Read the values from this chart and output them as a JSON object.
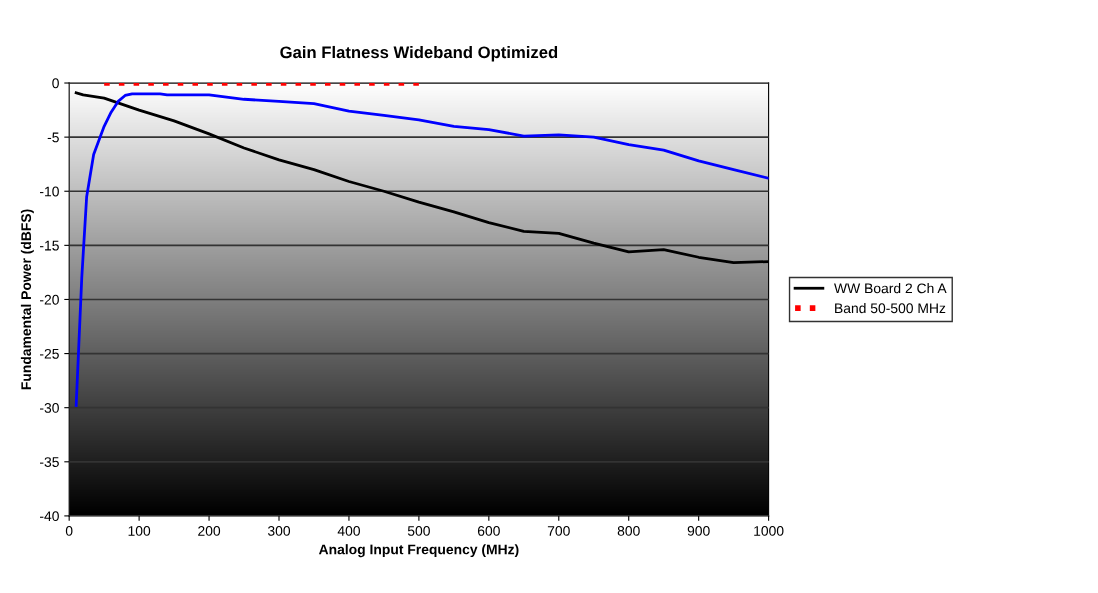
{
  "chart_data": {
    "type": "line",
    "title": "Gain Flatness Wideband Optimized",
    "xlabel": "Analog Input Frequency (MHz)",
    "ylabel": "Fundamental Power (dBFS)",
    "xlim": [
      0,
      1000
    ],
    "xticks": [
      0,
      100,
      200,
      300,
      400,
      500,
      600,
      700,
      800,
      900,
      1000
    ],
    "ylim": [
      -40,
      0
    ],
    "yticks": [
      -40,
      -35,
      -30,
      -25,
      -20,
      -15,
      -10,
      -5,
      0
    ],
    "grid": "y",
    "legend": "right",
    "marker": "none",
    "line_style": "solid",
    "series": [
      {
        "name": "WW Board 2 Ch A",
        "color": "#000000",
        "x": [
          10,
          20,
          50,
          100,
          150,
          200,
          250,
          300,
          350,
          400,
          450,
          500,
          550,
          600,
          650,
          700,
          750,
          800,
          850,
          900,
          950,
          1000
        ],
        "values": [
          -0.9,
          -1.1,
          -1.4,
          -2.5,
          -3.5,
          -4.7,
          -6.0,
          -7.1,
          -8.0,
          -9.1,
          -10.0,
          -11.0,
          -11.9,
          -12.9,
          -13.7,
          -13.9,
          -14.8,
          -15.6,
          -15.4,
          -16.1,
          -16.6,
          -16.5
        ]
      },
      {
        "color": "#0000ff",
        "x": [
          10,
          18,
          25,
          35,
          50,
          60,
          70,
          80,
          90,
          100,
          130,
          140,
          200,
          250,
          300,
          350,
          400,
          450,
          500,
          550,
          600,
          650,
          700,
          750,
          800,
          850,
          900,
          950,
          1000
        ],
        "values": [
          -29.8,
          -18,
          -10.5,
          -6.6,
          -4,
          -2.7,
          -1.7,
          -1.15,
          -1.0,
          -1.0,
          -1.0,
          -1.1,
          -1.1,
          -1.5,
          -1.7,
          -1.9,
          -2.6,
          -3.0,
          -3.4,
          -4.0,
          -4.3,
          -4.9,
          -4.8,
          -5.0,
          -5.7,
          -6.2,
          -7.2,
          -8.0,
          -8.8
        ]
      },
      {
        "name": "Band 50-500 MHz",
        "color": "#ff0000",
        "line_style": "dotted",
        "x": [
          50,
          500
        ],
        "values": [
          0,
          0
        ]
      }
    ]
  }
}
